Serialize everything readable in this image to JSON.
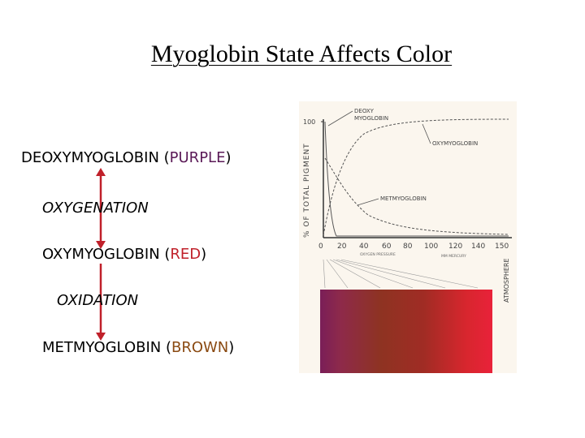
{
  "title": "Myoglobin State Affects Color",
  "states": {
    "deoxy": {
      "name": "DEOXYMYOGLOBIN (",
      "color_word": "PURPLE",
      "close": ")",
      "color": "#5b1a57"
    },
    "oxy": {
      "name": "OXYMYOGLOBIN (",
      "color_word": "RED",
      "close": ")",
      "color": "#c0202a"
    },
    "met": {
      "name": "METMYOGLOBIN (",
      "color_word": "BROWN",
      "close": ")",
      "color": "#8a4a12"
    }
  },
  "processes": {
    "oxygenation": "OXYGENATION",
    "oxidation": "OXIDATION"
  },
  "arrow_color": "#c0202a",
  "figure": {
    "curve_labels": {
      "deoxy_line1": "DEOXY",
      "deoxy_line2": "MYOGLOBIN",
      "oxy": "OXYMYOGLOBIN",
      "met": "METMYOGLOBIN"
    },
    "y_axis_label": "% OF TOTAL PIGMENT",
    "y_tick": "100",
    "x_ticks": [
      "0",
      "20",
      "40",
      "60",
      "80",
      "100",
      "120",
      "140",
      "150"
    ],
    "x_axis_label": "ATMOSPHERE",
    "x_sublabel_1": "OXYGEN PRESSURE",
    "x_sublabel_2": "MM MERCURY"
  }
}
